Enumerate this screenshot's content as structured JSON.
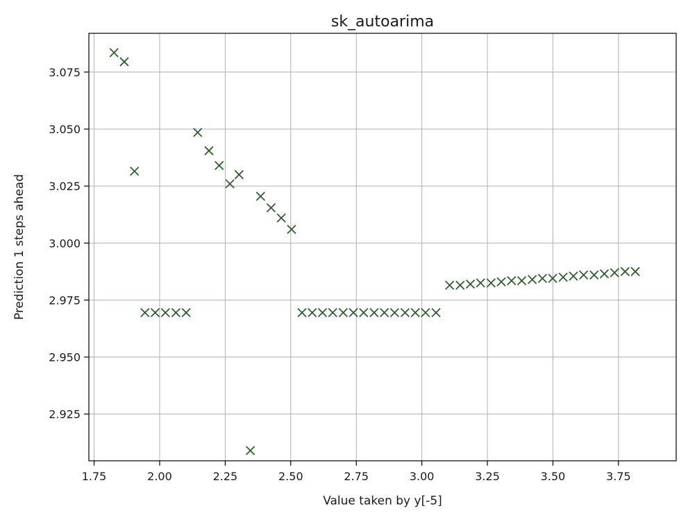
{
  "chart_data": {
    "type": "scatter",
    "title": "sk_autoarima",
    "xlabel": "Value taken by y[-5]",
    "ylabel": "Prediction 1 steps ahead",
    "xlim": [
      1.73,
      3.97
    ],
    "ylim": [
      2.9045,
      3.092
    ],
    "xticks": [
      1.75,
      2.0,
      2.25,
      2.5,
      2.75,
      3.0,
      3.25,
      3.5,
      3.75
    ],
    "xtick_labels": [
      "1.75",
      "2.00",
      "2.25",
      "2.50",
      "2.75",
      "3.00",
      "3.25",
      "3.50",
      "3.75"
    ],
    "yticks": [
      2.925,
      2.95,
      2.975,
      3.0,
      3.025,
      3.05,
      3.075
    ],
    "ytick_labels": [
      "2.925",
      "2.950",
      "2.975",
      "3.000",
      "3.025",
      "3.050",
      "3.075"
    ],
    "grid": true,
    "marker": "x",
    "color": "#2e5e2e",
    "points": [
      [
        1.826,
        3.0835
      ],
      [
        1.865,
        3.0795
      ],
      [
        1.904,
        3.0315
      ],
      [
        1.944,
        2.9695
      ],
      [
        1.983,
        2.9695
      ],
      [
        2.022,
        2.9695
      ],
      [
        2.062,
        2.9695
      ],
      [
        2.101,
        2.9695
      ],
      [
        2.145,
        3.0485
      ],
      [
        2.188,
        3.0405
      ],
      [
        2.227,
        3.034
      ],
      [
        2.268,
        3.026
      ],
      [
        2.303,
        3.03
      ],
      [
        2.346,
        2.909
      ],
      [
        2.385,
        3.0205
      ],
      [
        2.425,
        3.0155
      ],
      [
        2.464,
        3.011
      ],
      [
        2.503,
        3.006
      ],
      [
        2.543,
        2.9695
      ],
      [
        2.582,
        2.9695
      ],
      [
        2.621,
        2.9695
      ],
      [
        2.66,
        2.9695
      ],
      [
        2.7,
        2.9695
      ],
      [
        2.739,
        2.9695
      ],
      [
        2.778,
        2.9695
      ],
      [
        2.818,
        2.9695
      ],
      [
        2.857,
        2.9695
      ],
      [
        2.896,
        2.9695
      ],
      [
        2.936,
        2.9695
      ],
      [
        2.975,
        2.9695
      ],
      [
        3.014,
        2.9695
      ],
      [
        3.054,
        2.9695
      ],
      [
        3.106,
        2.9815
      ],
      [
        3.146,
        2.9815
      ],
      [
        3.185,
        2.982
      ],
      [
        3.224,
        2.9825
      ],
      [
        3.264,
        2.9825
      ],
      [
        3.303,
        2.983
      ],
      [
        3.342,
        2.9835
      ],
      [
        3.381,
        2.9835
      ],
      [
        3.421,
        2.984
      ],
      [
        3.46,
        2.9845
      ],
      [
        3.499,
        2.9845
      ],
      [
        3.539,
        2.985
      ],
      [
        3.578,
        2.9855
      ],
      [
        3.617,
        2.986
      ],
      [
        3.657,
        2.986
      ],
      [
        3.696,
        2.9865
      ],
      [
        3.735,
        2.987
      ],
      [
        3.775,
        2.9875
      ],
      [
        3.814,
        2.9875
      ]
    ]
  }
}
